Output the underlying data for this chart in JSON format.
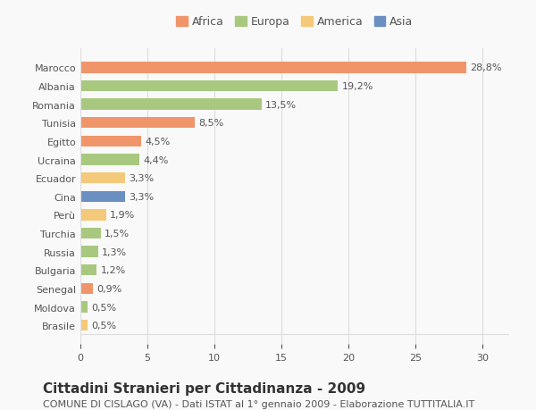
{
  "countries": [
    "Brasile",
    "Moldova",
    "Senegal",
    "Bulgaria",
    "Russia",
    "Turchia",
    "Perù",
    "Cina",
    "Ecuador",
    "Ucraina",
    "Egitto",
    "Tunisia",
    "Romania",
    "Albania",
    "Marocco"
  ],
  "values": [
    0.5,
    0.5,
    0.9,
    1.2,
    1.3,
    1.5,
    1.9,
    3.3,
    3.3,
    4.4,
    4.5,
    8.5,
    13.5,
    19.2,
    28.8
  ],
  "labels": [
    "0,5%",
    "0,5%",
    "0,9%",
    "1,2%",
    "1,3%",
    "1,5%",
    "1,9%",
    "3,3%",
    "3,3%",
    "4,4%",
    "4,5%",
    "8,5%",
    "13,5%",
    "19,2%",
    "28,8%"
  ],
  "colors": [
    "#f5c97a",
    "#a8c880",
    "#f0956a",
    "#a8c880",
    "#a8c880",
    "#a8c880",
    "#f5c97a",
    "#6a8fc0",
    "#f5c97a",
    "#a8c880",
    "#f0956a",
    "#f0956a",
    "#a8c880",
    "#a8c880",
    "#f0956a"
  ],
  "continent_colors": {
    "Africa": "#f0956a",
    "Europa": "#a8c880",
    "America": "#f5c97a",
    "Asia": "#6a8fc0"
  },
  "legend_items": [
    "Africa",
    "Europa",
    "America",
    "Asia"
  ],
  "title": "Cittadini Stranieri per Cittadinanza - 2009",
  "subtitle": "COMUNE DI CISLAGO (VA) - Dati ISTAT al 1° gennaio 2009 - Elaborazione TUTTITALIA.IT",
  "xlim": [
    0,
    32
  ],
  "xticks": [
    0,
    5,
    10,
    15,
    20,
    25,
    30
  ],
  "bar_height": 0.6,
  "background_color": "#f9f9f9",
  "grid_color": "#dddddd",
  "text_color": "#555555",
  "title_fontsize": 11,
  "subtitle_fontsize": 8,
  "label_fontsize": 8,
  "tick_fontsize": 8,
  "legend_fontsize": 9
}
